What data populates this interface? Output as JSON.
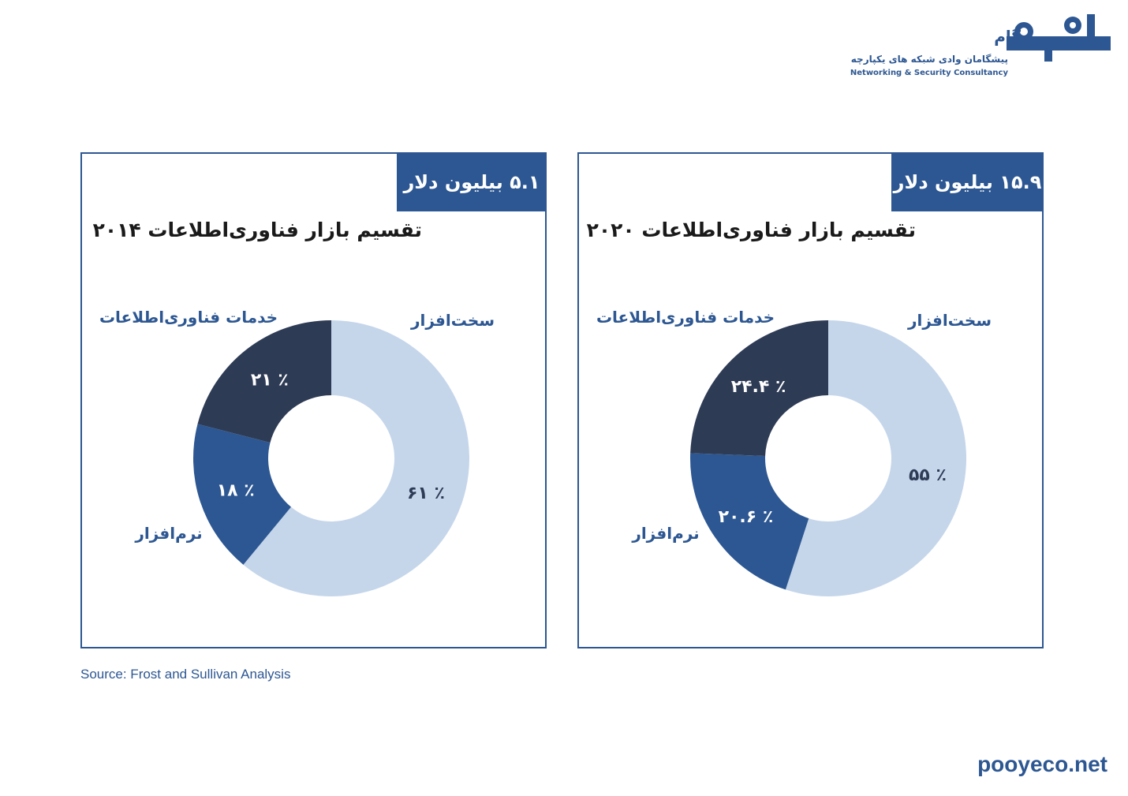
{
  "logo": {
    "brand": "گام",
    "tagline": "پیشگامان وادی شبکه های یکپارچه",
    "english": "Networking & Security Consultancy"
  },
  "colors": {
    "primary": "#2d5792",
    "hardware": "#c5d6eb",
    "software": "#2d5792",
    "services": "#2e3b55"
  },
  "chart_data": [
    {
      "type": "pie",
      "title": "تقسیم بازار فناوری‌اطلاعات ۲۰۱۴",
      "total": "۵.۱ بیلیون دلار",
      "categories": [
        "سخت‌افزار",
        "نرم‌افزار",
        "خدمات فناوری‌اطلاعات"
      ],
      "values": [
        61,
        18,
        21
      ],
      "value_labels": [
        "٪ ۶۱",
        "٪ ۱۸",
        "٪ ۲۱"
      ]
    },
    {
      "type": "pie",
      "title": "تقسیم بازار فناوری‌اطلاعات ۲۰۲۰",
      "total": "۱۵.۹ بیلیون دلار",
      "categories": [
        "سخت‌افزار",
        "نرم‌افزار",
        "خدمات فناوری‌اطلاعات"
      ],
      "values": [
        55,
        20.6,
        24.4
      ],
      "value_labels": [
        "٪ ۵۵",
        "٪ ۲۰.۶",
        "٪ ۲۴.۴"
      ]
    }
  ],
  "source": "Source: Frost and Sullivan Analysis",
  "footer_url": "pooyeco.net"
}
